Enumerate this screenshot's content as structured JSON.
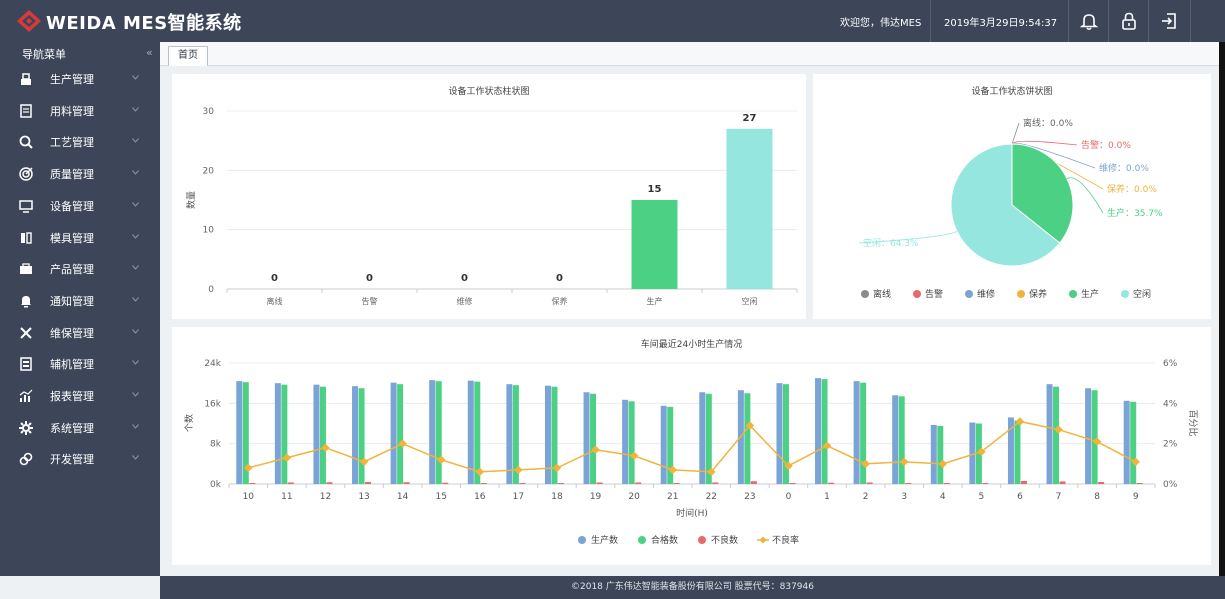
{
  "header": {
    "app_title": "WEIDA MES智能系统",
    "welcome": "欢迎您，伟达MES",
    "datetime": "2019年3月29日9:54:37",
    "icons": [
      "bell-icon",
      "lock-icon",
      "logout-icon"
    ]
  },
  "sidebar": {
    "title": "导航菜单",
    "collapse": "«",
    "items": [
      {
        "label": "生产管理",
        "icon": "production-icon"
      },
      {
        "label": "用料管理",
        "icon": "material-icon"
      },
      {
        "label": "工艺管理",
        "icon": "process-icon"
      },
      {
        "label": "质量管理",
        "icon": "quality-icon"
      },
      {
        "label": "设备管理",
        "icon": "equipment-icon"
      },
      {
        "label": "模具管理",
        "icon": "mold-icon"
      },
      {
        "label": "产品管理",
        "icon": "product-icon"
      },
      {
        "label": "通知管理",
        "icon": "notice-icon"
      },
      {
        "label": "维保管理",
        "icon": "maintenance-icon"
      },
      {
        "label": "辅机管理",
        "icon": "auxiliary-icon"
      },
      {
        "label": "报表管理",
        "icon": "report-icon"
      },
      {
        "label": "系统管理",
        "icon": "system-icon"
      },
      {
        "label": "开发管理",
        "icon": "develop-icon"
      }
    ]
  },
  "tabs": [
    {
      "label": "首页"
    }
  ],
  "footer": "©2018 广东伟达智能装备股份有限公司 股票代号：837946",
  "colors": {
    "offline": "#8c8c8c",
    "alarm": "#e8686c",
    "repair": "#7aa3d6",
    "service": "#f0b43c",
    "production": "#4cd084",
    "idle": "#94e6df",
    "line": "#f0b43c"
  },
  "chart_data": [
    {
      "type": "bar",
      "title": "设备工作状态柱状图",
      "ylabel": "数量",
      "ylim": [
        0,
        30
      ],
      "yticks": [
        0,
        10,
        20,
        30
      ],
      "categories": [
        "离线",
        "告警",
        "维修",
        "保养",
        "生产",
        "空闲"
      ],
      "values": [
        0,
        0,
        0,
        0,
        15,
        27
      ],
      "data_labels": [
        "0",
        "0",
        "0",
        "0",
        "15",
        "27"
      ],
      "bar_colors": [
        "#4cd084",
        "#4cd084",
        "#4cd084",
        "#4cd084",
        "#4cd084",
        "#94e6df"
      ],
      "grid": true
    },
    {
      "type": "pie",
      "title": "设备工作状态饼状图",
      "slices": [
        {
          "name": "离线",
          "value": 0.0,
          "label": "离线：0.0%",
          "color": "#8c8c8c"
        },
        {
          "name": "告警",
          "value": 0.0,
          "label": "告警：0.0%",
          "color": "#e8686c"
        },
        {
          "name": "维修",
          "value": 0.0,
          "label": "维修：0.0%",
          "color": "#7aa3d6"
        },
        {
          "name": "保养",
          "value": 0.0,
          "label": "保养：0.0%",
          "color": "#f0b43c"
        },
        {
          "name": "生产",
          "value": 35.7,
          "label": "生产：35.7%",
          "color": "#4cd084"
        },
        {
          "name": "空闲",
          "value": 64.3,
          "label": "空闲：64.3%",
          "color": "#94e6df"
        }
      ],
      "legend": [
        "离线",
        "告警",
        "维修",
        "保养",
        "生产",
        "空闲"
      ],
      "legend_position": "bottom"
    },
    {
      "type": "bar",
      "title": "车间最近24小时生产情况",
      "xlabel": "时间(H)",
      "ylabel": "个数",
      "y2label": "百分比",
      "ylim": [
        0,
        24000
      ],
      "yticks": [
        "0k",
        "8k",
        "16k",
        "24k"
      ],
      "y2lim": [
        0,
        6
      ],
      "y2ticks": [
        "0%",
        "2%",
        "4%",
        "6%"
      ],
      "categories": [
        "10",
        "11",
        "12",
        "13",
        "14",
        "15",
        "16",
        "17",
        "18",
        "19",
        "20",
        "21",
        "22",
        "23",
        "0",
        "1",
        "2",
        "3",
        "4",
        "5",
        "6",
        "7",
        "8",
        "9"
      ],
      "series": [
        {
          "name": "生产数",
          "color": "#7aa3d6",
          "values": [
            20400,
            20000,
            19700,
            19400,
            20100,
            20600,
            20500,
            19800,
            19500,
            18200,
            16700,
            15500,
            18200,
            18600,
            20000,
            21000,
            20400,
            17600,
            11700,
            12200,
            13200,
            19800,
            19000,
            16500
          ]
        },
        {
          "name": "合格数",
          "color": "#4cd084",
          "values": [
            20200,
            19700,
            19300,
            19000,
            19800,
            20400,
            20300,
            19600,
            19300,
            17900,
            16400,
            15300,
            17900,
            18000,
            19800,
            20800,
            20100,
            17400,
            11500,
            12000,
            12600,
            19300,
            18600,
            16300
          ]
        },
        {
          "name": "不良数",
          "color": "#e8686c",
          "values": [
            200,
            300,
            350,
            400,
            350,
            250,
            200,
            200,
            200,
            300,
            300,
            200,
            300,
            550,
            200,
            250,
            300,
            200,
            200,
            200,
            600,
            500,
            400,
            200
          ]
        },
        {
          "name": "不良率",
          "color": "#f0b43c",
          "type": "line",
          "values": [
            0.8,
            1.3,
            1.8,
            1.1,
            2.0,
            1.2,
            0.6,
            0.7,
            0.8,
            1.7,
            1.4,
            0.7,
            0.6,
            2.9,
            0.9,
            1.9,
            1.0,
            1.1,
            1.0,
            1.6,
            3.1,
            2.7,
            2.1,
            1.1
          ]
        }
      ],
      "legend": [
        "生产数",
        "合格数",
        "不良数",
        "不良率"
      ],
      "legend_position": "bottom"
    }
  ]
}
